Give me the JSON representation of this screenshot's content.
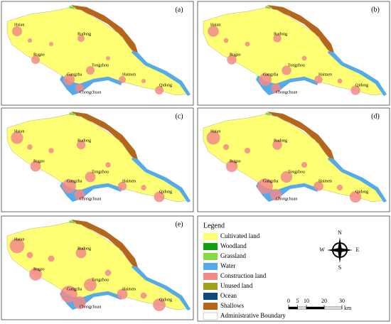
{
  "panels": [
    {
      "label": "(a)"
    },
    {
      "label": "(b)"
    },
    {
      "label": "(c)"
    },
    {
      "label": "(d)"
    },
    {
      "label": "(e)"
    }
  ],
  "place_names": [
    "Haian",
    "Rudong",
    "Rugao",
    "Tongzhou",
    "Gangzha",
    "Haimen",
    "Qidong",
    "Chongchuan"
  ],
  "legend": {
    "title": "Legend",
    "items": [
      {
        "name": "Cultivated land",
        "color": "#ffff73"
      },
      {
        "name": "Woodland",
        "color": "#12a012"
      },
      {
        "name": "Grassland",
        "color": "#86d940"
      },
      {
        "name": "Water",
        "color": "#55aaea"
      },
      {
        "name": "Construction land",
        "color": "#f28a8a"
      },
      {
        "name": "Unused land",
        "color": "#9ea020"
      },
      {
        "name": "Ocean",
        "color": "#0c4a78"
      },
      {
        "name": "Shallows",
        "color": "#b3661c"
      },
      {
        "name": "Administrative Boundary",
        "color": "#ffffff"
      }
    ]
  },
  "compass": {
    "north": "N",
    "south": "S",
    "west": "W",
    "east": "E"
  },
  "scale_bar": {
    "ticks": [
      0,
      5,
      10,
      20,
      30
    ],
    "unit": "km"
  }
}
